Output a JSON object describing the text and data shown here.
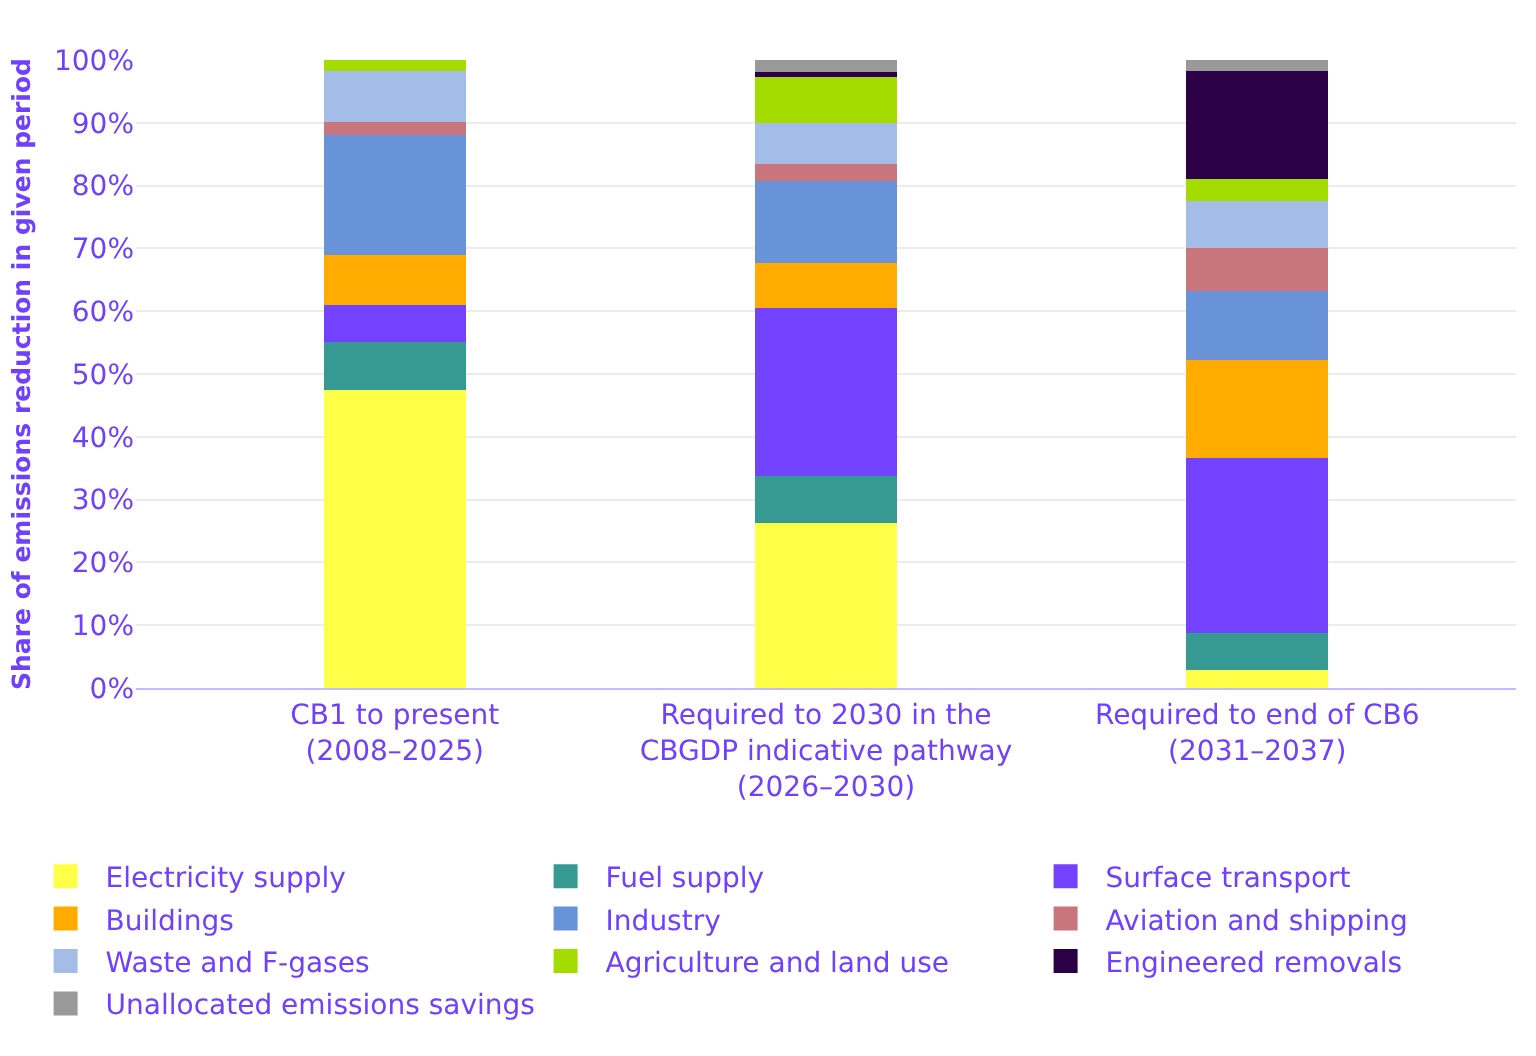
{
  "chart_data": {
    "type": "bar",
    "stacked": true,
    "ylabel": "Share of emissions reduction in given period",
    "categories": [
      "CB1 to present\n(2008–2025)",
      "Required to 2030 in the\nCBGDP indicative pathway\n(2026–2030)",
      "Required to end of CB6\n(2031–2037)"
    ],
    "series": [
      {
        "name": "Electricity supply",
        "color": "#ffff47",
        "values": [
          47.5,
          26.2,
          2.8
        ]
      },
      {
        "name": "Fuel supply",
        "color": "#379a92",
        "values": [
          7.6,
          7.5,
          5.9
        ]
      },
      {
        "name": "Surface transport",
        "color": "#7342ff",
        "values": [
          5.9,
          26.8,
          27.9
        ]
      },
      {
        "name": "Buildings",
        "color": "#ffab00",
        "values": [
          8.0,
          7.1,
          15.7
        ]
      },
      {
        "name": "Industry",
        "color": "#6893d8",
        "values": [
          19.1,
          13.1,
          10.9
        ]
      },
      {
        "name": "Aviation and shipping",
        "color": "#c8767b",
        "values": [
          2.1,
          2.8,
          6.8
        ]
      },
      {
        "name": "Waste and F-gases",
        "color": "#a4bde8",
        "values": [
          8.0,
          6.4,
          7.6
        ]
      },
      {
        "name": "Agriculture and land use",
        "color": "#a4dc00",
        "values": [
          1.8,
          7.4,
          3.5
        ]
      },
      {
        "name": "Engineered removals",
        "color": "#2b0046",
        "values": [
          0,
          0.8,
          17.2
        ]
      },
      {
        "name": "Unallocated emissions savings",
        "color": "#999999",
        "values": [
          0,
          1.9,
          1.7
        ]
      }
    ],
    "ylim": [
      0,
      100
    ],
    "yticks": [
      {
        "value": 0,
        "label": "0%"
      },
      {
        "value": 10,
        "label": "10%"
      },
      {
        "value": 20,
        "label": "20%"
      },
      {
        "value": 30,
        "label": "30%"
      },
      {
        "value": 40,
        "label": "40%"
      },
      {
        "value": 50,
        "label": "50%"
      },
      {
        "value": 60,
        "label": "60%"
      },
      {
        "value": 70,
        "label": "70%"
      },
      {
        "value": 80,
        "label": "80%"
      },
      {
        "value": 90,
        "label": "90%"
      },
      {
        "value": 100,
        "label": "100%"
      }
    ],
    "grid": "y",
    "legend": "bottom"
  }
}
